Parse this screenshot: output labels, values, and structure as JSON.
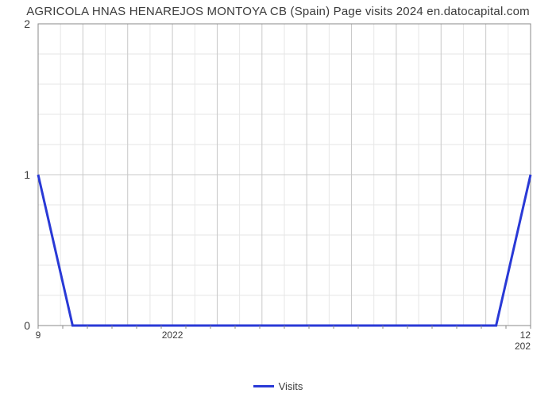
{
  "chart": {
    "type": "line",
    "title": "AGRICOLA HNAS HENAREJOS MONTOYA CB (Spain) Page visits 2024 en.datocapital.com",
    "title_fontsize": 15,
    "title_color": "#3b3b3b",
    "background_color": "#ffffff",
    "plot_border_color": "#888888",
    "plot_border_width": 1,
    "grid": {
      "major_color": "#c8c8c8",
      "minor_color": "#e6e6e6",
      "major_width": 1,
      "minor_width": 1,
      "x_major_count": 11,
      "x_minor_per_major": 1,
      "y_major_ticks": [
        0,
        1,
        2
      ],
      "y_minor_per_major": 4
    },
    "x_axis": {
      "tick_labels_left": [
        "9",
        "",
        "",
        "2022"
      ],
      "tick_labels_right": [
        "12",
        "202"
      ],
      "label_color": "#3b3b3b",
      "label_fontsize": 12,
      "minor_tick_count": 20
    },
    "y_axis": {
      "ylim": [
        0,
        2
      ],
      "ticks": [
        0,
        1,
        2
      ],
      "tick_labels": [
        "0",
        "1",
        "2"
      ],
      "label_color": "#3b3b3b",
      "label_fontsize": 14
    },
    "series": {
      "name": "Visits",
      "color": "#2939d6",
      "line_width": 3,
      "points_normalized": [
        [
          0.0,
          1.0
        ],
        [
          0.07,
          0.0
        ],
        [
          0.93,
          0.0
        ],
        [
          1.0,
          1.0
        ]
      ]
    },
    "legend": {
      "label": "Visits",
      "swatch_color": "#2939d6",
      "text_color": "#3b3b3b",
      "fontsize": 13
    }
  }
}
